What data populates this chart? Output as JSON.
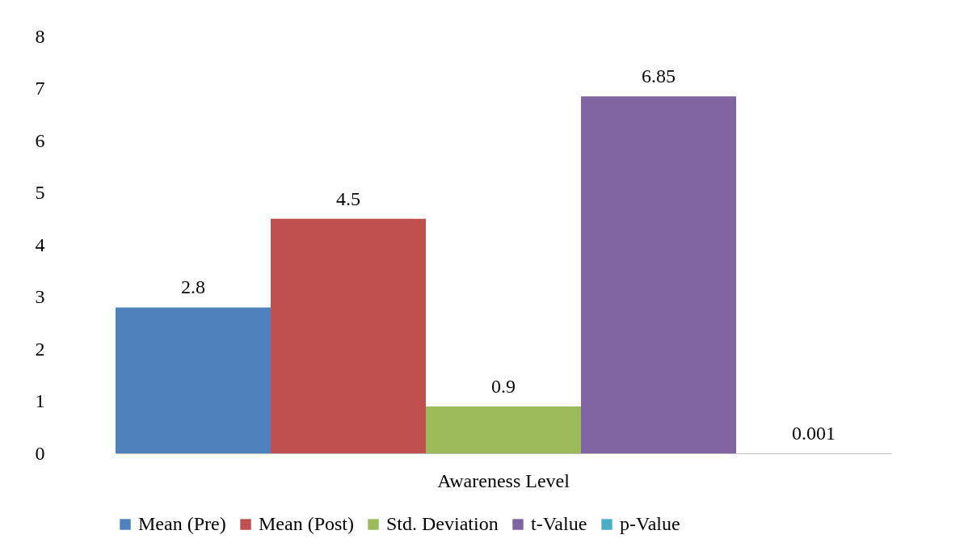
{
  "chart_data": {
    "type": "bar",
    "categories": [
      "Awareness Level"
    ],
    "series": [
      {
        "name": "Mean (Pre)",
        "color": "#4f81bd",
        "values": [
          2.8
        ]
      },
      {
        "name": "Mean (Post)",
        "color": "#c0504d",
        "values": [
          4.5
        ]
      },
      {
        "name": "Std. Deviation",
        "color": "#9bbb59",
        "values": [
          0.9
        ]
      },
      {
        "name": "t-Value",
        "color": "#8064a2",
        "values": [
          6.85
        ]
      },
      {
        "name": "p-Value",
        "color": "#4bacc6",
        "values": [
          0.001
        ]
      }
    ],
    "ylim": [
      0,
      8
    ],
    "yticks": [
      0,
      1,
      2,
      3,
      4,
      5,
      6,
      7,
      8
    ],
    "data_labels": true,
    "legend": "bottom"
  }
}
